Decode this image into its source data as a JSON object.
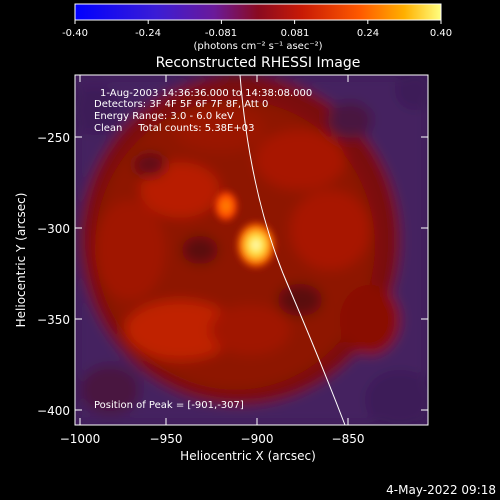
{
  "colorbar": {
    "ticks": [
      "-0.40",
      "-0.24",
      "-0.081",
      "0.081",
      "0.24",
      "0.40"
    ],
    "units": "(photons cm⁻² s⁻¹ asec⁻²)"
  },
  "image": {
    "title": "Reconstructed RHESSI Image",
    "info_lines": [
      "1-Aug-2003 14:36:36.000 to 14:38:08.000",
      "Detectors: 3F 4F 5F 6F 7F 8F, Att 0",
      "Energy Range: 3.0 - 6.0 keV",
      "Clean     Total counts: 5.38E+03"
    ],
    "peak_label": "Position of Peak = [-901,-307]",
    "xlabel": "Heliocentric X (arcsec)",
    "ylabel": "Heliocentric Y (arcsec)",
    "xticks": [
      "−1000",
      "−950",
      "−900",
      "−850"
    ],
    "yticks": [
      "−250",
      "−300",
      "−350",
      "−400"
    ]
  },
  "footer": {
    "timestamp": "4-May-2022 09:18"
  }
}
